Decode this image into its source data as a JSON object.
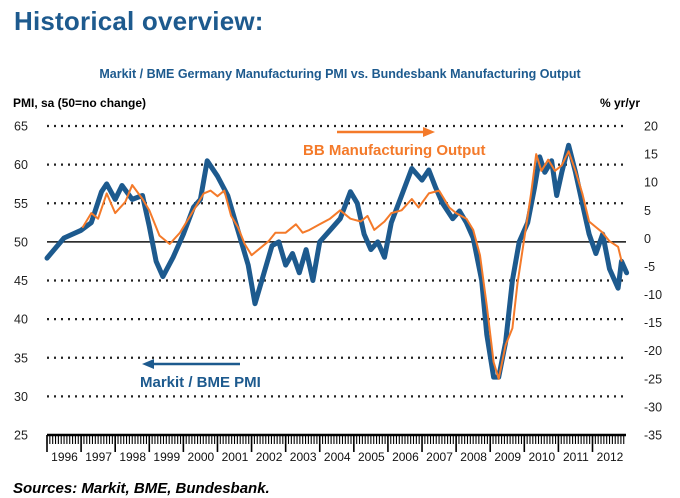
{
  "page": {
    "title": "Historical overview:",
    "sources": "Sources: Markit, BME, Bundesbank."
  },
  "chart_data": {
    "type": "line",
    "title": "Markit / BME Germany Manufacturing PMI vs. Bundesbank Manufacturing Output",
    "ylabel_left": "PMI, sa (50=no change)",
    "ylabel_right": "% yr/yr",
    "xlabel": "",
    "ylim_left": [
      25,
      65
    ],
    "ylim_right": [
      -35,
      20
    ],
    "yticks_left": [
      "65",
      "60",
      "55",
      "50",
      "45",
      "40",
      "35",
      "30",
      "25"
    ],
    "yticks_right": [
      "20",
      "15",
      "10",
      "5",
      "0",
      "-5",
      "-10",
      "-15",
      "-20",
      "-25",
      "-30",
      "-35"
    ],
    "xticks": [
      "1996",
      "1997",
      "1998",
      "1999",
      "2000",
      "2001",
      "2002",
      "2003",
      "2004",
      "2005",
      "2006",
      "2007",
      "2008",
      "2009",
      "2010",
      "2011",
      "2012"
    ],
    "xlim": [
      1996.0,
      2013.1
    ],
    "grid": "horizontal dotted",
    "reference_line": {
      "axis": "left",
      "value": 50
    },
    "colors": {
      "pmi": "#1d5a8e",
      "bb": "#f47a2a"
    },
    "annotations": [
      {
        "text": "BB Manufacturing Output",
        "arrow": "right",
        "series": "bb"
      },
      {
        "text": "Markit / BME PMI",
        "arrow": "left",
        "series": "pmi"
      }
    ],
    "series": [
      {
        "name": "Markit / BME PMI",
        "axis": "left",
        "x": [
          1996.0,
          1996.5,
          1997.0,
          1997.3,
          1997.6,
          1997.75,
          1998.0,
          1998.2,
          1998.5,
          1998.8,
          1999.0,
          1999.2,
          1999.4,
          1999.7,
          2000.0,
          2000.3,
          2000.5,
          2000.7,
          2001.0,
          2001.3,
          2001.6,
          2001.9,
          2002.1,
          2002.3,
          2002.6,
          2002.8,
          2003.0,
          2003.2,
          2003.4,
          2003.6,
          2003.8,
          2004.0,
          2004.3,
          2004.6,
          2004.9,
          2005.1,
          2005.3,
          2005.5,
          2005.7,
          2005.9,
          2006.1,
          2006.4,
          2006.7,
          2007.0,
          2007.2,
          2007.4,
          2007.6,
          2007.9,
          2008.1,
          2008.3,
          2008.5,
          2008.75,
          2008.9,
          2009.1,
          2009.25,
          2009.45,
          2009.65,
          2009.85,
          2010.1,
          2010.3,
          2010.45,
          2010.6,
          2010.8,
          2010.95,
          2011.1,
          2011.3,
          2011.5,
          2011.7,
          2011.9,
          2012.1,
          2012.3,
          2012.5,
          2012.75,
          2012.85,
          2013.0
        ],
        "values": [
          47.9,
          50.5,
          51.5,
          52.5,
          56.5,
          57.5,
          55.5,
          57.3,
          55.5,
          56.0,
          52.0,
          47.5,
          45.5,
          48.0,
          51.0,
          54.5,
          55.5,
          60.5,
          58.5,
          56.0,
          51.5,
          47.0,
          42.0,
          45.0,
          49.5,
          50.0,
          47.0,
          48.5,
          46.0,
          49.0,
          45.0,
          50.0,
          51.5,
          53.0,
          56.5,
          55.0,
          51.0,
          49.0,
          50.0,
          48.0,
          52.5,
          56.0,
          59.5,
          58.0,
          59.3,
          57.0,
          55.0,
          53.0,
          54.0,
          52.5,
          50.5,
          45.0,
          38.0,
          32.5,
          32.5,
          37.0,
          45.0,
          50.0,
          52.5,
          57.0,
          61.0,
          59.0,
          60.5,
          56.0,
          59.0,
          62.5,
          59.0,
          55.0,
          51.0,
          48.5,
          51.0,
          46.5,
          44.0,
          47.5,
          46.0
        ]
      },
      {
        "name": "BB Manufacturing Output",
        "axis": "right",
        "x": [
          1997.05,
          1997.3,
          1997.5,
          1997.75,
          1998.0,
          1998.3,
          1998.5,
          1998.8,
          1999.0,
          1999.3,
          1999.6,
          1999.9,
          2000.1,
          2000.4,
          2000.6,
          2000.8,
          2001.0,
          2001.2,
          2001.4,
          2001.6,
          2001.8,
          2002.0,
          2002.3,
          2002.5,
          2002.7,
          2003.0,
          2003.3,
          2003.5,
          2003.7,
          2004.0,
          2004.3,
          2004.6,
          2004.9,
          2005.2,
          2005.4,
          2005.6,
          2005.9,
          2006.1,
          2006.4,
          2006.7,
          2006.9,
          2007.2,
          2007.5,
          2007.8,
          2008.0,
          2008.3,
          2008.5,
          2008.7,
          2008.9,
          2009.1,
          2009.25,
          2009.45,
          2009.65,
          2009.8,
          2010.0,
          2010.2,
          2010.35,
          2010.5,
          2010.7,
          2010.9,
          2011.1,
          2011.3,
          2011.5,
          2011.7,
          2011.9,
          2012.1,
          2012.3,
          2012.5,
          2012.75,
          2012.85
        ],
        "values": [
          2.0,
          4.5,
          3.5,
          8.0,
          4.5,
          6.5,
          9.5,
          7.0,
          5.0,
          0.5,
          -1.0,
          1.0,
          3.0,
          6.0,
          8.0,
          8.5,
          7.5,
          8.5,
          4.0,
          2.0,
          -1.0,
          -3.0,
          -1.5,
          -0.5,
          1.0,
          1.0,
          2.5,
          1.0,
          1.5,
          2.5,
          3.5,
          5.0,
          3.5,
          3.0,
          4.0,
          1.5,
          3.0,
          4.5,
          5.0,
          7.0,
          5.5,
          8.0,
          8.5,
          5.5,
          4.5,
          3.5,
          1.5,
          -3.0,
          -12.0,
          -22.0,
          -25.0,
          -19.0,
          -16.0,
          -8.0,
          0.0,
          8.0,
          15.0,
          12.0,
          14.0,
          12.0,
          13.0,
          15.5,
          12.0,
          8.0,
          3.0,
          2.0,
          1.0,
          -0.5,
          -1.5,
          -4.0
        ]
      }
    ]
  }
}
